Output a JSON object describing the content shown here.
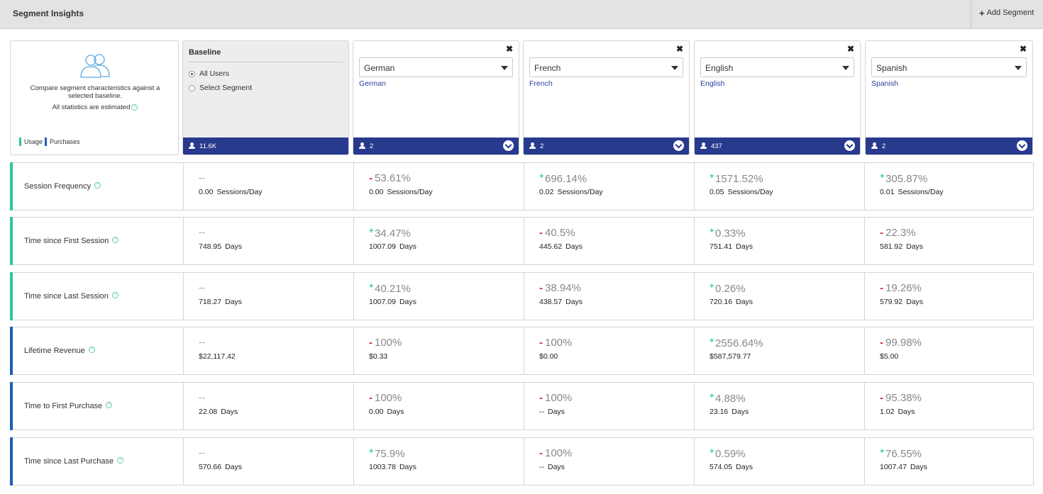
{
  "header": {
    "title": "Segment Insights",
    "add_label": "Add Segment"
  },
  "intro": {
    "description": "Compare segment characteristics against a selected baseline.",
    "estimate_note": "All statistics are estimated",
    "legend": [
      "Usage",
      "Purchases"
    ]
  },
  "baseline": {
    "title": "Baseline",
    "options": [
      "All Users",
      "Select Segment"
    ],
    "selected": "All Users",
    "count": "11.6K"
  },
  "segments": [
    {
      "selected": "German",
      "link": "German",
      "count": "2"
    },
    {
      "selected": "French",
      "link": "French",
      "count": "2"
    },
    {
      "selected": "English",
      "link": "English",
      "count": "437"
    },
    {
      "selected": "Spanish",
      "link": "Spanish",
      "count": "2"
    }
  ],
  "metrics": [
    {
      "label": "Session Frequency",
      "kind": "usage",
      "baseline": {
        "pct": "--",
        "value": "0.00",
        "unit": "Sessions/Day"
      },
      "cells": [
        {
          "sign": "-",
          "pct": "53.61%",
          "value": "0.00",
          "unit": "Sessions/Day"
        },
        {
          "sign": "+",
          "pct": "696.14%",
          "value": "0.02",
          "unit": "Sessions/Day"
        },
        {
          "sign": "+",
          "pct": "1571.52%",
          "value": "0.05",
          "unit": "Sessions/Day"
        },
        {
          "sign": "+",
          "pct": "305.87%",
          "value": "0.01",
          "unit": "Sessions/Day"
        }
      ]
    },
    {
      "label": "Time since First Session",
      "kind": "usage",
      "baseline": {
        "pct": "--",
        "value": "748.95",
        "unit": "Days"
      },
      "cells": [
        {
          "sign": "+",
          "pct": "34.47%",
          "value": "1007.09",
          "unit": "Days"
        },
        {
          "sign": "-",
          "pct": "40.5%",
          "value": "445.62",
          "unit": "Days"
        },
        {
          "sign": "+",
          "pct": "0.33%",
          "value": "751.41",
          "unit": "Days"
        },
        {
          "sign": "-",
          "pct": "22.3%",
          "value": "581.92",
          "unit": "Days"
        }
      ]
    },
    {
      "label": "Time since Last Session",
      "kind": "usage",
      "baseline": {
        "pct": "--",
        "value": "718.27",
        "unit": "Days"
      },
      "cells": [
        {
          "sign": "+",
          "pct": "40.21%",
          "value": "1007.09",
          "unit": "Days"
        },
        {
          "sign": "-",
          "pct": "38.94%",
          "value": "438.57",
          "unit": "Days"
        },
        {
          "sign": "+",
          "pct": "0.26%",
          "value": "720.16",
          "unit": "Days"
        },
        {
          "sign": "-",
          "pct": "19.26%",
          "value": "579.92",
          "unit": "Days"
        }
      ]
    },
    {
      "label": "Lifetime Revenue",
      "kind": "purchase",
      "baseline": {
        "pct": "--",
        "value": "$22,117.42",
        "unit": ""
      },
      "cells": [
        {
          "sign": "-",
          "pct": "100%",
          "value": "$0.33",
          "unit": ""
        },
        {
          "sign": "-",
          "pct": "100%",
          "value": "$0.00",
          "unit": ""
        },
        {
          "sign": "+",
          "pct": "2556.64%",
          "value": "$587,579.77",
          "unit": ""
        },
        {
          "sign": "-",
          "pct": "99.98%",
          "value": "$5.00",
          "unit": ""
        }
      ]
    },
    {
      "label": "Time to First Purchase",
      "kind": "purchase",
      "baseline": {
        "pct": "--",
        "value": "22.08",
        "unit": "Days"
      },
      "cells": [
        {
          "sign": "-",
          "pct": "100%",
          "value": "0.00",
          "unit": "Days"
        },
        {
          "sign": "-",
          "pct": "100%",
          "value": "--",
          "unit": "Days"
        },
        {
          "sign": "+",
          "pct": "4.88%",
          "value": "23.16",
          "unit": "Days"
        },
        {
          "sign": "-",
          "pct": "95.38%",
          "value": "1.02",
          "unit": "Days"
        }
      ]
    },
    {
      "label": "Time since Last Purchase",
      "kind": "purchase",
      "baseline": {
        "pct": "--",
        "value": "570.66",
        "unit": "Days"
      },
      "cells": [
        {
          "sign": "+",
          "pct": "75.9%",
          "value": "1003.78",
          "unit": "Days"
        },
        {
          "sign": "-",
          "pct": "100%",
          "value": "--",
          "unit": "Days"
        },
        {
          "sign": "+",
          "pct": "0.59%",
          "value": "574.05",
          "unit": "Days"
        },
        {
          "sign": "+",
          "pct": "76.55%",
          "value": "1007.47",
          "unit": "Days"
        }
      ]
    }
  ],
  "colors": {
    "usage": "#2fc4a0",
    "purchase": "#1a5fb4",
    "footer": "#283a8e",
    "negative": "#e02a2a",
    "positive": "#2fc4a0"
  }
}
